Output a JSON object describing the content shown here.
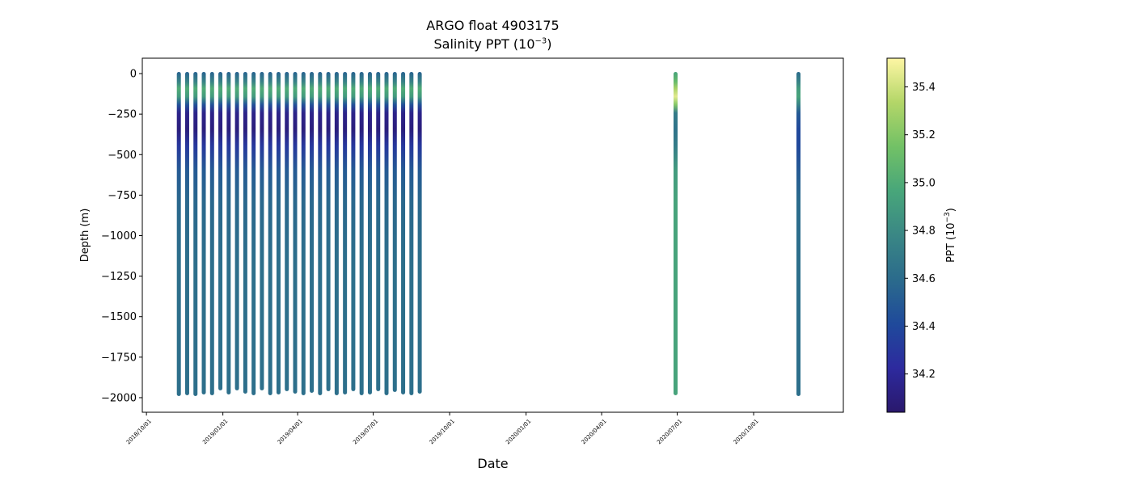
{
  "chart_data": {
    "type": "scatter",
    "title": "ARGO float 4903175",
    "subtitle_prefix": "Salinity PPT (10",
    "subtitle_exp": "−3",
    "subtitle_suffix": ")",
    "xlabel": "Date",
    "ylabel": "Depth (m)",
    "colorbar_label_prefix": "PPT (10",
    "colorbar_label_exp": "−3",
    "colorbar_label_suffix": ")",
    "xlim": [
      "2018-09-26",
      "2021-01-17"
    ],
    "ylim": [
      -2090,
      95
    ],
    "x_ticks": [
      "2018/10/01",
      "2019/01/01",
      "2019/04/01",
      "2019/07/01",
      "2019/10/01",
      "2020/01/01",
      "2020/04/01",
      "2020/07/01",
      "2020/10/01"
    ],
    "y_ticks": [
      0,
      -250,
      -500,
      -750,
      -1000,
      -1250,
      -1500,
      -1750,
      -2000
    ],
    "colorbar_range": [
      34.04,
      35.52
    ],
    "colorbar_ticks": [
      34.2,
      34.4,
      34.6,
      34.8,
      35.0,
      35.2,
      35.4
    ],
    "colormap": [
      "#2a186c",
      "#2d2a9e",
      "#1f4a9b",
      "#2b6b8c",
      "#3a8785",
      "#48a67a",
      "#72c166",
      "#b3d668",
      "#fef6a4"
    ],
    "profiles": [
      {
        "date": "2018-11-09",
        "min_depth": -1980
      },
      {
        "date": "2018-11-19",
        "min_depth": -1975
      },
      {
        "date": "2018-11-29",
        "min_depth": -1980
      },
      {
        "date": "2018-12-09",
        "min_depth": -1970
      },
      {
        "date": "2018-12-19",
        "min_depth": -1975
      },
      {
        "date": "2018-12-29",
        "min_depth": -1945
      },
      {
        "date": "2019-01-08",
        "min_depth": -1970
      },
      {
        "date": "2019-01-18",
        "min_depth": -1945
      },
      {
        "date": "2019-01-28",
        "min_depth": -1965
      },
      {
        "date": "2019-02-07",
        "min_depth": -1975
      },
      {
        "date": "2019-02-17",
        "min_depth": -1945
      },
      {
        "date": "2019-02-27",
        "min_depth": -1975
      },
      {
        "date": "2019-03-09",
        "min_depth": -1970
      },
      {
        "date": "2019-03-19",
        "min_depth": -1950
      },
      {
        "date": "2019-03-29",
        "min_depth": -1965
      },
      {
        "date": "2019-04-08",
        "min_depth": -1975
      },
      {
        "date": "2019-04-18",
        "min_depth": -1960
      },
      {
        "date": "2019-04-28",
        "min_depth": -1975
      },
      {
        "date": "2019-05-08",
        "min_depth": -1950
      },
      {
        "date": "2019-05-18",
        "min_depth": -1975
      },
      {
        "date": "2019-05-28",
        "min_depth": -1970
      },
      {
        "date": "2019-06-07",
        "min_depth": -1950
      },
      {
        "date": "2019-06-17",
        "min_depth": -1975
      },
      {
        "date": "2019-06-27",
        "min_depth": -1970
      },
      {
        "date": "2019-07-07",
        "min_depth": -1950
      },
      {
        "date": "2019-07-17",
        "min_depth": -1975
      },
      {
        "date": "2019-07-27",
        "min_depth": -1955
      },
      {
        "date": "2019-08-06",
        "min_depth": -1970
      },
      {
        "date": "2019-08-16",
        "min_depth": -1975
      },
      {
        "date": "2019-08-26",
        "min_depth": -1965
      },
      {
        "date": "2019-06-30",
        "min_depth": -1975,
        "skip": true
      },
      {
        "date": "2020-06-29",
        "min_depth": -1975
      },
      {
        "date": "2020-11-24",
        "min_depth": -1980
      }
    ],
    "salinity_levels": [
      {
        "depth": 0,
        "grid": 34.55,
        "late1": 34.95,
        "late2": 34.6
      },
      {
        "depth": -60,
        "grid": 34.75,
        "late1": 35.1,
        "late2": 34.75
      },
      {
        "depth": -100,
        "grid": 35.0,
        "late1": 35.3,
        "late2": 34.9
      },
      {
        "depth": -150,
        "grid": 34.9,
        "late1": 35.45,
        "late2": 34.95
      },
      {
        "depth": -200,
        "grid": 34.45,
        "late1": 35.2,
        "late2": 34.75
      },
      {
        "depth": -250,
        "grid": 34.15,
        "late1": 34.7,
        "late2": 34.5
      },
      {
        "depth": -350,
        "grid": 34.1,
        "late1": 34.65,
        "late2": 34.4
      },
      {
        "depth": -450,
        "grid": 34.3,
        "late1": 34.7,
        "late2": 34.4
      },
      {
        "depth": -600,
        "grid": 34.5,
        "late1": 34.9,
        "late2": 34.5
      },
      {
        "depth": -800,
        "grid": 34.58,
        "late1": 34.95,
        "late2": 34.6
      },
      {
        "depth": -1200,
        "grid": 34.62,
        "late1": 34.95,
        "late2": 34.62
      },
      {
        "depth": -1980,
        "grid": 34.62,
        "late1": 34.95,
        "late2": 34.62
      }
    ]
  }
}
